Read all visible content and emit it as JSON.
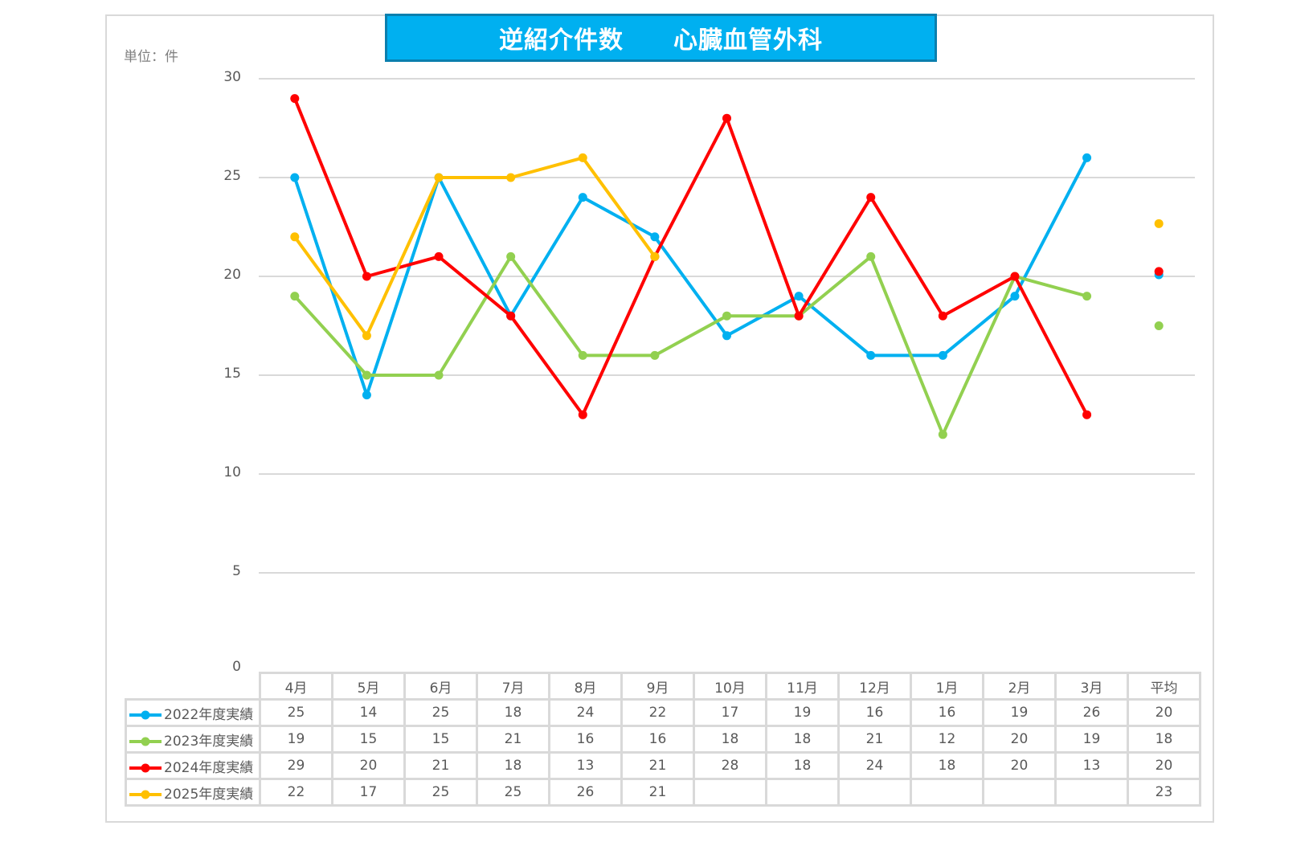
{
  "title": "逆紹介件数　　心臓血管外科",
  "unit_label": "単位：件",
  "y_ticks": [
    "30",
    "25",
    "20",
    "15",
    "10",
    "5",
    "0"
  ],
  "table": {
    "headers": [
      "4月",
      "5月",
      "6月",
      "7月",
      "8月",
      "9月",
      "10月",
      "11月",
      "12月",
      "1月",
      "2月",
      "3月",
      "平均"
    ],
    "rows": [
      {
        "label": "2022年度実績",
        "color": "#00b0f0",
        "cells": [
          "25",
          "14",
          "25",
          "18",
          "24",
          "22",
          "17",
          "19",
          "16",
          "16",
          "19",
          "26",
          "20"
        ]
      },
      {
        "label": "2023年度実績",
        "color": "#92d050",
        "cells": [
          "19",
          "15",
          "15",
          "21",
          "16",
          "16",
          "18",
          "18",
          "21",
          "12",
          "20",
          "19",
          "18"
        ]
      },
      {
        "label": "2024年度実績",
        "color": "#ff0000",
        "cells": [
          "29",
          "20",
          "21",
          "18",
          "13",
          "21",
          "28",
          "18",
          "24",
          "18",
          "20",
          "13",
          "20"
        ]
      },
      {
        "label": "2025年度実績",
        "color": "#ffc000",
        "cells": [
          "22",
          "17",
          "25",
          "25",
          "26",
          "21",
          "",
          "",
          "",
          "",
          "",
          "",
          "23"
        ]
      }
    ]
  },
  "chart_data": {
    "type": "line",
    "title": "逆紹介件数　　心臓血管外科",
    "ylabel": "単位：件",
    "xlabel": "",
    "ylim": [
      0,
      30
    ],
    "yticks": [
      0,
      5,
      10,
      15,
      20,
      25,
      30
    ],
    "grid": true,
    "legend_position": "table-left",
    "categories": [
      "4月",
      "5月",
      "6月",
      "7月",
      "8月",
      "9月",
      "10月",
      "11月",
      "12月",
      "1月",
      "2月",
      "3月"
    ],
    "average_category": "平均",
    "series": [
      {
        "name": "2022年度実績",
        "color": "#00b0f0",
        "values": [
          25,
          14,
          25,
          18,
          24,
          22,
          17,
          19,
          16,
          16,
          19,
          26
        ],
        "average": 20.08
      },
      {
        "name": "2023年度実績",
        "color": "#92d050",
        "values": [
          19,
          15,
          15,
          21,
          16,
          16,
          18,
          18,
          21,
          12,
          20,
          19
        ],
        "average": 17.5
      },
      {
        "name": "2024年度実績",
        "color": "#ff0000",
        "values": [
          29,
          20,
          21,
          18,
          13,
          21,
          28,
          18,
          24,
          18,
          20,
          13
        ],
        "average": 20.25
      },
      {
        "name": "2025年度実績",
        "color": "#ffc000",
        "values": [
          22,
          17,
          25,
          25,
          26,
          21,
          null,
          null,
          null,
          null,
          null,
          null
        ],
        "average": 22.67
      }
    ]
  }
}
